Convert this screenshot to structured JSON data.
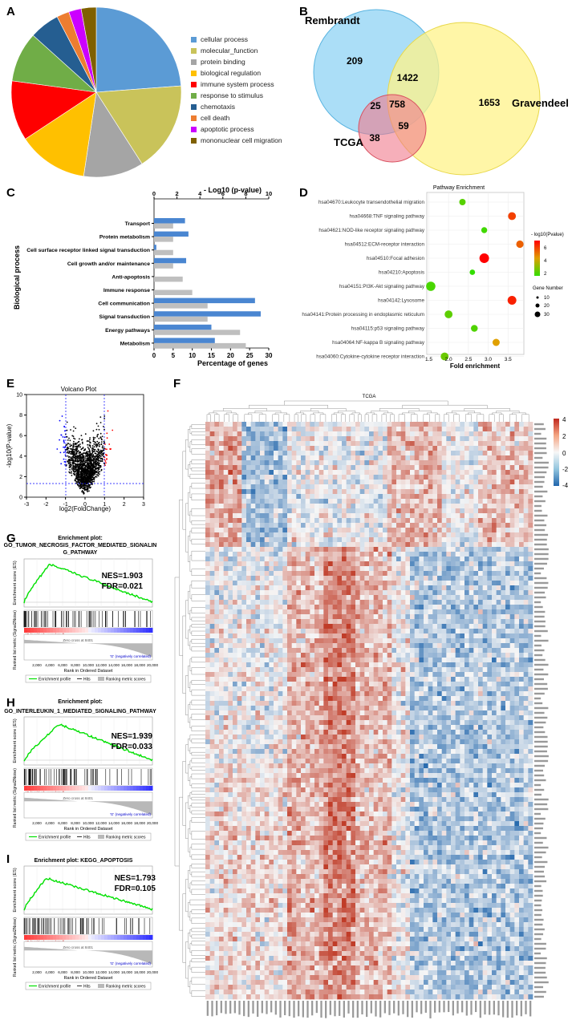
{
  "panel_letters": {
    "A": "A",
    "B": "B",
    "C": "C",
    "D": "D",
    "E": "E",
    "F": "F",
    "G": "G",
    "H": "H",
    "I": "I"
  },
  "colors": {
    "cellular_process": "#5b9bd5",
    "molecular_function": "#c9c35a",
    "protein_binding": "#a5a5a5",
    "biological_regulation": "#ffc000",
    "immune_system_process": "#ff0000",
    "response_to_stimulus": "#70ad47",
    "chemotaxis": "#255e91",
    "cell_death": "#ed7d31",
    "apoptotic_process": "#cc00ff",
    "mononuclear_cell_migration": "#7f6000",
    "venn_rembrandt": "#8fd3f4",
    "venn_gravendeel": "#fff38a",
    "venn_tcga": "#f07a8c",
    "bar_blue": "#4a86d1",
    "bar_gray": "#bfbfbf",
    "volcano_blue": "#0000ff",
    "volcano_red": "#ff0000",
    "gsea_green": "#00e000"
  },
  "chart_data": [
    {
      "id": "A",
      "type": "pie",
      "labels": [
        "cellular process",
        "molecular_function",
        "protein binding",
        "biological regulation",
        "immune system process",
        "response to stimulus",
        "chemotaxis",
        "cell death",
        "apoptotic process",
        "mononuclear cell migration"
      ],
      "values": [
        25,
        18,
        12,
        14,
        12,
        10,
        6,
        2.5,
        2.5,
        3
      ]
    },
    {
      "id": "B",
      "type": "venn",
      "sets": [
        "Rembrandt",
        "Gravendeel",
        "TCGA"
      ],
      "regions": {
        "rembrandt_only": "209",
        "rembrandt_gravendeel": "1422",
        "gravendeel_only": "1653",
        "rembrandt_tcga": "25",
        "all_three": "758",
        "gravendeel_tcga": "59",
        "tcga_only": "38"
      }
    },
    {
      "id": "C",
      "type": "bar",
      "ylabel": "Biological process",
      "xlabel": "Percentage of genes",
      "top_axis_label": "- Log10 (p-value)",
      "top_ticks": [
        "0",
        "2",
        "4",
        "6",
        "8",
        "10"
      ],
      "bottom_ticks": [
        "0",
        "5",
        "10",
        "15",
        "20",
        "25",
        "30"
      ],
      "categories": [
        "Transport",
        "Protein metabolism",
        "Cell surface receptor linked signal transduction",
        "Cell growth and/or maintenance",
        "Anti-apoptosis",
        "Immune response",
        "Cell communication",
        "Signal transduction",
        "Energy pathways",
        "Metabolism"
      ],
      "series": [
        {
          "name": "-Log10 (p-value)",
          "values": [
            2.7,
            3.0,
            0.2,
            2.8,
            0,
            0,
            8.8,
            9.3,
            5.0,
            5.3
          ],
          "max": 10
        },
        {
          "name": "Percentage of genes",
          "values": [
            5,
            5,
            5,
            5,
            7.5,
            10,
            14,
            14,
            22.5,
            24
          ],
          "max": 30
        }
      ]
    },
    {
      "id": "D",
      "type": "scatter",
      "title": "Pathway Enrichment",
      "xlabel": "Fold enrichment",
      "xticks": [
        "1.5",
        "2.0",
        "2.5",
        "3.0",
        "3.5"
      ],
      "xlim": [
        1.45,
        3.9
      ],
      "categories": [
        "hsa04670:Leukocyte transendothelial migration",
        "hsa04668:TNF signaling pathway",
        "hsa04621:NOD-like receptor signaling pathway",
        "hsa04512:ECM-receptor interaction",
        "hsa04510:Focal adhesion",
        "hsa04210:Apoptosis",
        "hsa04151:PI3K-Akt signaling pathway",
        "hsa04142:Lysosome",
        "hsa04141:Protein processing in endoplasmic reticulum",
        "hsa04115:p53 signaling pathway",
        "hsa04064:NF-kappa B signaling pathway",
        "hsa04060:Cytokine-cytokine receptor interaction"
      ],
      "x": [
        2.35,
        3.6,
        2.9,
        3.8,
        2.9,
        2.6,
        1.55,
        3.6,
        2.0,
        2.65,
        3.2,
        1.9
      ],
      "sizes": [
        10,
        18,
        8,
        15,
        30,
        6,
        28,
        24,
        18,
        12,
        14,
        18
      ],
      "log10p": [
        2.5,
        6.0,
        2.2,
        5.5,
        7.0,
        2.0,
        2.3,
        6.5,
        2.6,
        2.4,
        4.5,
        2.8
      ],
      "legend_color_title": "- log10(Pvalue)",
      "legend_color_ticks": [
        "6",
        "4",
        "2"
      ],
      "legend_size_title": "Gene Number",
      "legend_size_ticks": [
        "10",
        "20",
        "30"
      ]
    },
    {
      "id": "E",
      "type": "scatter",
      "title": "Volcano Plot",
      "xlabel": "log2(FoldChange)",
      "ylabel": "-log10(P-value)",
      "xticks": [
        "-3",
        "-2",
        "-1",
        "0",
        "1",
        "2",
        "3"
      ],
      "yticks": [
        "0",
        "2",
        "4",
        "6",
        "8",
        "10"
      ],
      "xlim": [
        -3,
        3
      ],
      "ylim": [
        0,
        10
      ],
      "thresholds": {
        "fold": 1,
        "p": 1.3
      }
    },
    {
      "id": "F",
      "type": "heatmap",
      "title": "TCGA",
      "scale_ticks": [
        "4",
        "2",
        "0",
        "-2",
        "-4"
      ]
    },
    {
      "id": "G",
      "type": "line",
      "title_line1": "Enrichment plot:",
      "title_line2": "GO_TUMOR_NECROSIS_FACTOR_MEDIATED_SIGNALIN",
      "title_line3": "G_PATHWAY",
      "nes": "NES=1.903",
      "fdr": "FDR=0.021",
      "peak_rank": 4000,
      "peak_es": 0.55
    },
    {
      "id": "H",
      "type": "line",
      "title_line1": "Enrichment plot:",
      "title_line2": "GO_INTERLEUKIN_1_MEDIATED_SIGNALING_PATHWAY",
      "title_line3": "",
      "nes": "NES=1.939",
      "fdr": "FDR=0.033",
      "peak_rank": 5500,
      "peak_es": 0.52
    },
    {
      "id": "I",
      "type": "line",
      "title_line1": "Enrichment plot: KEGG_APOPTOSIS",
      "title_line2": "",
      "title_line3": "",
      "nes": "NES=1.793",
      "fdr": "FDR=0.105",
      "peak_rank": 3500,
      "peak_es": 0.45
    }
  ],
  "gsea_common": {
    "ylabel_top": "Enrichment score (ES)",
    "ylabel_bottom": "Ranked list metric (Signal2Noise)",
    "xlabel": "Rank in Ordered Dataset",
    "pos_label": "'4' (positively correlated)",
    "neg_label": "'G' (negatively correlated)",
    "zero_label": "Zero cross at 8401",
    "legend_profile": "Enrichment profile",
    "legend_hits": "Hits",
    "legend_metric": "Ranking metric scores",
    "xticks": [
      "2,000",
      "4,000",
      "6,000",
      "8,000",
      "10,000",
      "12,000",
      "14,000",
      "16,000",
      "18,000",
      "20,000"
    ]
  }
}
